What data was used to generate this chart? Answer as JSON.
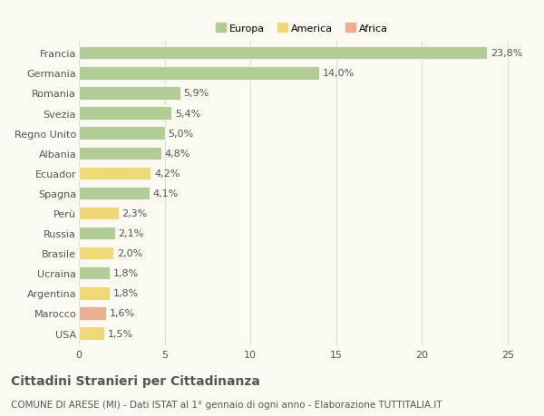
{
  "countries": [
    "Francia",
    "Germania",
    "Romania",
    "Svezia",
    "Regno Unito",
    "Albania",
    "Ecuador",
    "Spagna",
    "Perù",
    "Russia",
    "Brasile",
    "Ucraina",
    "Argentina",
    "Marocco",
    "USA"
  ],
  "values": [
    23.8,
    14.0,
    5.9,
    5.4,
    5.0,
    4.8,
    4.2,
    4.1,
    2.3,
    2.1,
    2.0,
    1.8,
    1.8,
    1.6,
    1.5
  ],
  "labels": [
    "23,8%",
    "14,0%",
    "5,9%",
    "5,4%",
    "5,0%",
    "4,8%",
    "4,2%",
    "4,1%",
    "2,3%",
    "2,1%",
    "2,0%",
    "1,8%",
    "1,8%",
    "1,6%",
    "1,5%"
  ],
  "categories": [
    "Europa",
    "Europa",
    "Europa",
    "Europa",
    "Europa",
    "Europa",
    "America",
    "Europa",
    "America",
    "Europa",
    "America",
    "Europa",
    "America",
    "Africa",
    "America"
  ],
  "colors": {
    "Europa": "#b2cc96",
    "America": "#f0d878",
    "Africa": "#e8b090"
  },
  "xlim": [
    0,
    26
  ],
  "xticks": [
    0,
    5,
    10,
    15,
    20,
    25
  ],
  "title": "Cittadini Stranieri per Cittadinanza",
  "subtitle": "COMUNE DI ARESE (MI) - Dati ISTAT al 1° gennaio di ogni anno - Elaborazione TUTTITALIA.IT",
  "bg_color": "#fafaf2",
  "grid_color": "#ddddcc",
  "bar_edge_color": "white",
  "text_color": "#555555",
  "label_fontsize": 8,
  "tick_fontsize": 8,
  "title_fontsize": 10,
  "subtitle_fontsize": 7.5
}
